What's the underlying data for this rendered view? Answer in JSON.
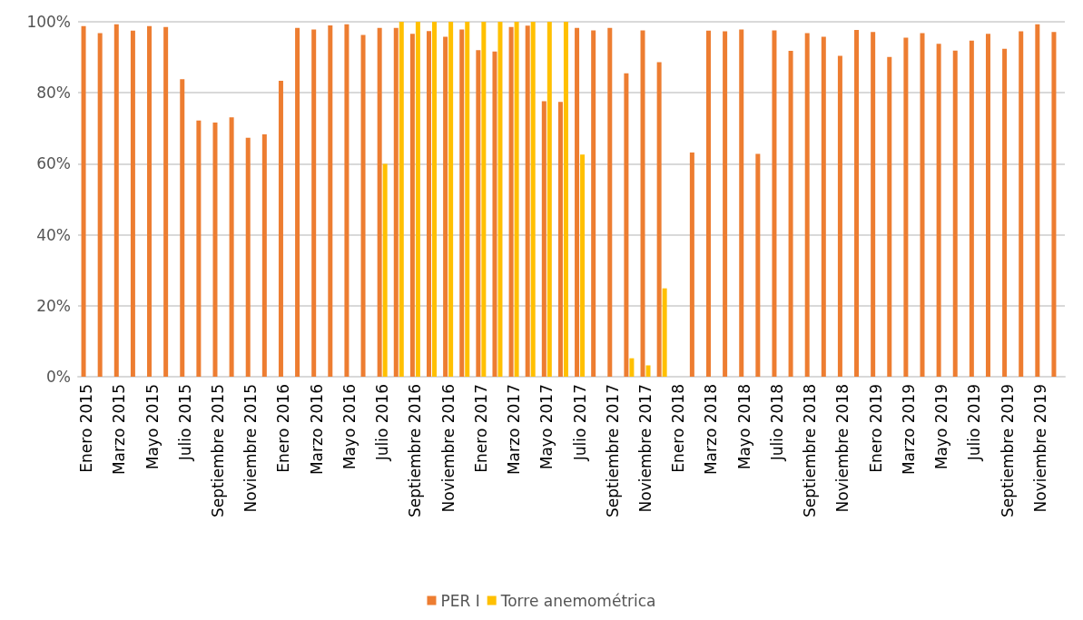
{
  "chart_data": {
    "type": "bar",
    "categories": [
      "Enero 2015",
      null,
      "Marzo 2015",
      null,
      "Mayo 2015",
      null,
      "Julio 2015",
      null,
      "Septiembre 2015",
      null,
      "Noviembre 2015",
      null,
      "Enero 2016",
      null,
      "Marzo 2016",
      null,
      "Mayo 2016",
      null,
      "Julio 2016",
      null,
      "Septiembre 2016",
      null,
      "Noviembre 2016",
      null,
      "Enero 2017",
      null,
      "Marzo 2017",
      null,
      "Mayo 2017",
      null,
      "Julio 2017",
      null,
      "Septiembre 2017",
      null,
      "Noviembre 2017",
      null,
      "Enero 2018",
      null,
      "Marzo 2018",
      null,
      "Mayo 2018",
      null,
      "Julio 2018",
      null,
      "Septiembre 2018",
      null,
      "Noviembre 2018",
      null,
      "Enero 2019",
      null,
      "Marzo 2019",
      null,
      "Mayo 2019",
      null,
      "Julio 2019",
      null,
      "Septiembre 2019",
      null,
      "Noviembre 2019",
      null
    ],
    "series": [
      {
        "name": "PER I",
        "color": "#ed7d31",
        "values": [
          98.8,
          96.8,
          99.3,
          97.5,
          98.8,
          98.5,
          83.8,
          72.2,
          71.6,
          73.1,
          67.3,
          68.3,
          83.4,
          98.3,
          97.8,
          99.0,
          99.3,
          96.3,
          98.3,
          98.3,
          96.6,
          97.4,
          95.8,
          97.8,
          92.0,
          91.6,
          98.5,
          98.9,
          77.6,
          77.4,
          98.3,
          97.6,
          98.3,
          85.5,
          97.6,
          88.6,
          null,
          63.2,
          97.5,
          97.3,
          97.8,
          62.8,
          97.6,
          91.8,
          96.8,
          95.8,
          90.4,
          97.7,
          97.1,
          90.1,
          95.5,
          96.8,
          93.8,
          91.9,
          94.7,
          96.6,
          92.4,
          97.3,
          99.3,
          97.1
        ]
      },
      {
        "name": "Torre anemométrica",
        "color": "#ffc000",
        "values": [
          null,
          null,
          null,
          null,
          null,
          null,
          null,
          null,
          null,
          null,
          null,
          null,
          null,
          null,
          null,
          null,
          null,
          null,
          60,
          100,
          100,
          100,
          100,
          100,
          100,
          100,
          100,
          100,
          100,
          100,
          62.6,
          null,
          null,
          5.2,
          3.2,
          24.9,
          null,
          null,
          null,
          null,
          null,
          null,
          null,
          null,
          null,
          null,
          null,
          null,
          null,
          null,
          null,
          null,
          null,
          null,
          null,
          null,
          null,
          null,
          null,
          null
        ]
      }
    ],
    "ylim": [
      0,
      100
    ],
    "yticks": [
      {
        "value": 0,
        "label": "0%"
      },
      {
        "value": 20,
        "label": "20%"
      },
      {
        "value": 40,
        "label": "40%"
      },
      {
        "value": 60,
        "label": "60%"
      },
      {
        "value": 80,
        "label": "80%"
      },
      {
        "value": 100,
        "label": "100%"
      }
    ],
    "grid": "y",
    "legend": "bottom"
  }
}
